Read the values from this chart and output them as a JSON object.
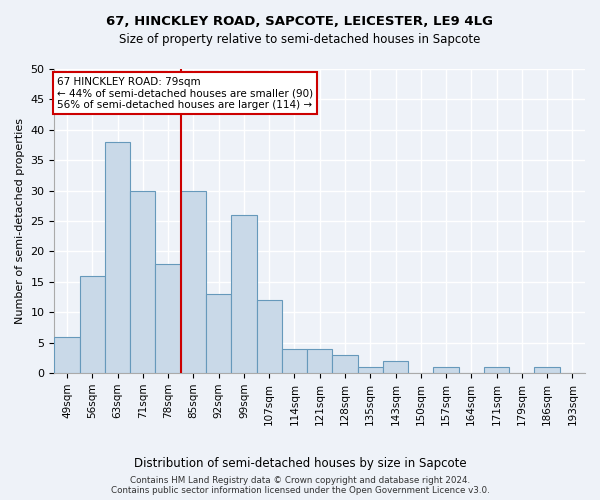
{
  "title1": "67, HINCKLEY ROAD, SAPCOTE, LEICESTER, LE9 4LG",
  "title2": "Size of property relative to semi-detached houses in Sapcote",
  "xlabel": "Distribution of semi-detached houses by size in Sapcote",
  "ylabel": "Number of semi-detached properties",
  "categories": [
    "49sqm",
    "56sqm",
    "63sqm",
    "71sqm",
    "78sqm",
    "85sqm",
    "92sqm",
    "99sqm",
    "107sqm",
    "114sqm",
    "121sqm",
    "128sqm",
    "135sqm",
    "143sqm",
    "150sqm",
    "157sqm",
    "164sqm",
    "171sqm",
    "179sqm",
    "186sqm",
    "193sqm"
  ],
  "values": [
    6,
    16,
    38,
    30,
    18,
    30,
    13,
    26,
    12,
    4,
    4,
    3,
    1,
    2,
    0,
    1,
    0,
    1,
    0,
    1,
    0
  ],
  "bar_color": "#c9d9e8",
  "bar_edge_color": "#6699bb",
  "property_bin_index": 4,
  "vline_color": "#cc0000",
  "annotation_title": "67 HINCKLEY ROAD: 79sqm",
  "annotation_line1": "← 44% of semi-detached houses are smaller (90)",
  "annotation_line2": "56% of semi-detached houses are larger (114) →",
  "annotation_box_color": "#cc0000",
  "footer1": "Contains HM Land Registry data © Crown copyright and database right 2024.",
  "footer2": "Contains public sector information licensed under the Open Government Licence v3.0.",
  "ylim": [
    0,
    50
  ],
  "yticks": [
    0,
    5,
    10,
    15,
    20,
    25,
    30,
    35,
    40,
    45,
    50
  ],
  "bg_color": "#eef2f8",
  "grid_color": "#ffffff"
}
